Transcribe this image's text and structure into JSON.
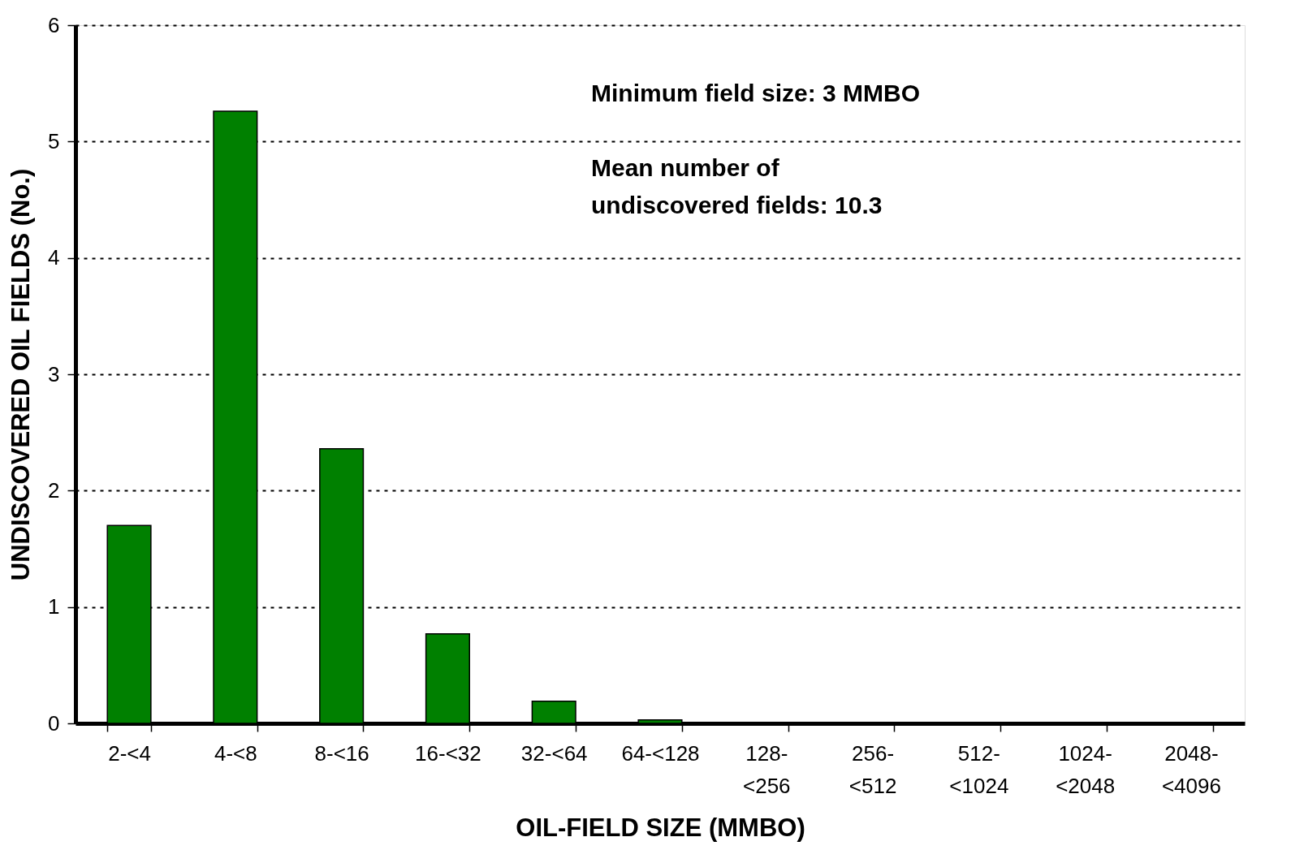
{
  "chart_data": {
    "type": "bar",
    "xlabel": "OIL-FIELD SIZE (MMBO)",
    "ylabel": "UNDISCOVERED OIL FIELDS (No.)",
    "categories": [
      "2-<4",
      "4-<8",
      "8-<16",
      "16-<32",
      "32-<64",
      "64-<128",
      "128-<256",
      "256-<512",
      "512-<1024",
      "1024-<2048",
      "2048-<4096"
    ],
    "values": [
      1.7,
      5.26,
      2.36,
      0.77,
      0.19,
      0.03,
      0,
      0,
      0,
      0,
      0
    ],
    "color": "#008000",
    "ylim": [
      0,
      6
    ],
    "yticks": [
      0,
      1,
      2,
      3,
      4,
      5,
      6
    ],
    "grid": "y",
    "annotations": [
      "Minimum field size: 3 MMBO",
      "Mean number of\nundiscovered fields: 10.3"
    ]
  }
}
